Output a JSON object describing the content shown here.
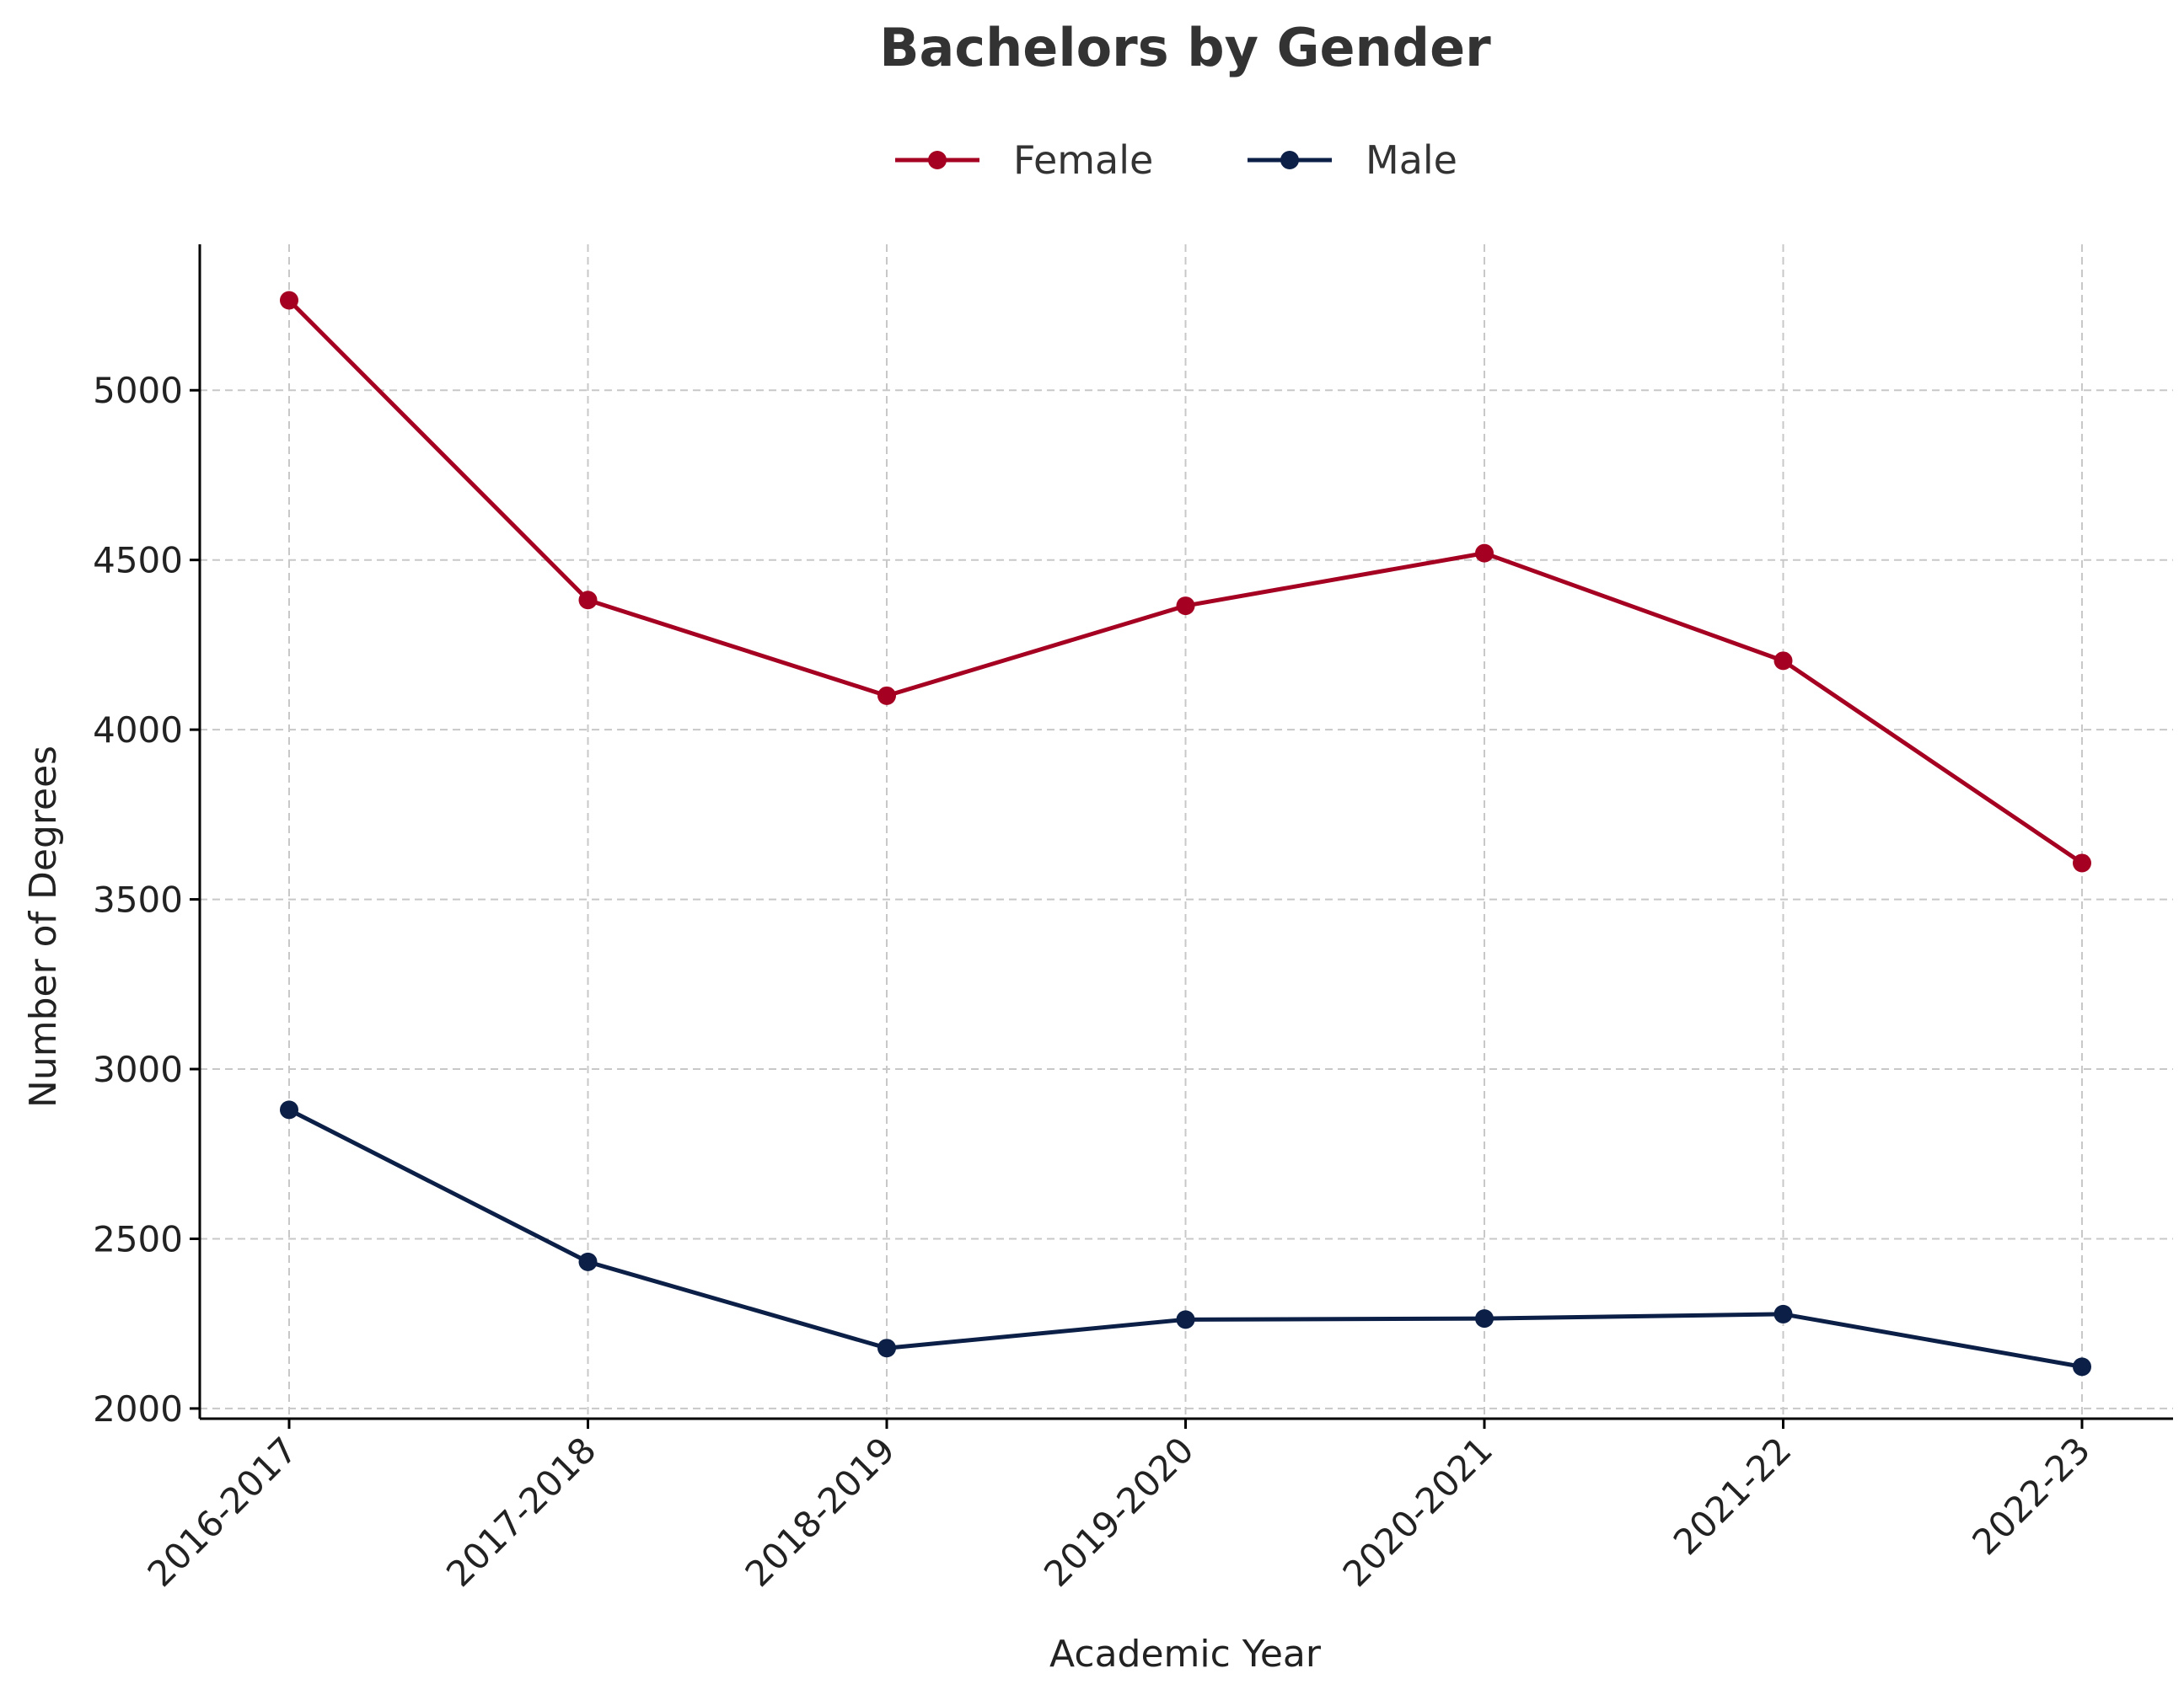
{
  "chart_data": {
    "type": "line",
    "title": "Bachelors by Gender",
    "xlabel": "Academic Year",
    "ylabel": "Number of Degrees",
    "categories": [
      "2016-2017",
      "2017-2018",
      "2018-2019",
      "2019-2020",
      "2020-2021",
      "2021-22",
      "2022-23"
    ],
    "ylim": [
      1970,
      5430
    ],
    "yticks": [
      2000,
      2500,
      3000,
      3500,
      4000,
      4500,
      5000
    ],
    "grid": true,
    "legend_position": "top-center",
    "series": [
      {
        "name": "Female",
        "color": "#a50021",
        "values": [
          5265,
          4382,
          4100,
          4365,
          4520,
          4203,
          3607
        ]
      },
      {
        "name": "Male",
        "color": "#0b1f47",
        "values": [
          2880,
          2432,
          2178,
          2262,
          2265,
          2278,
          2123
        ]
      }
    ]
  }
}
